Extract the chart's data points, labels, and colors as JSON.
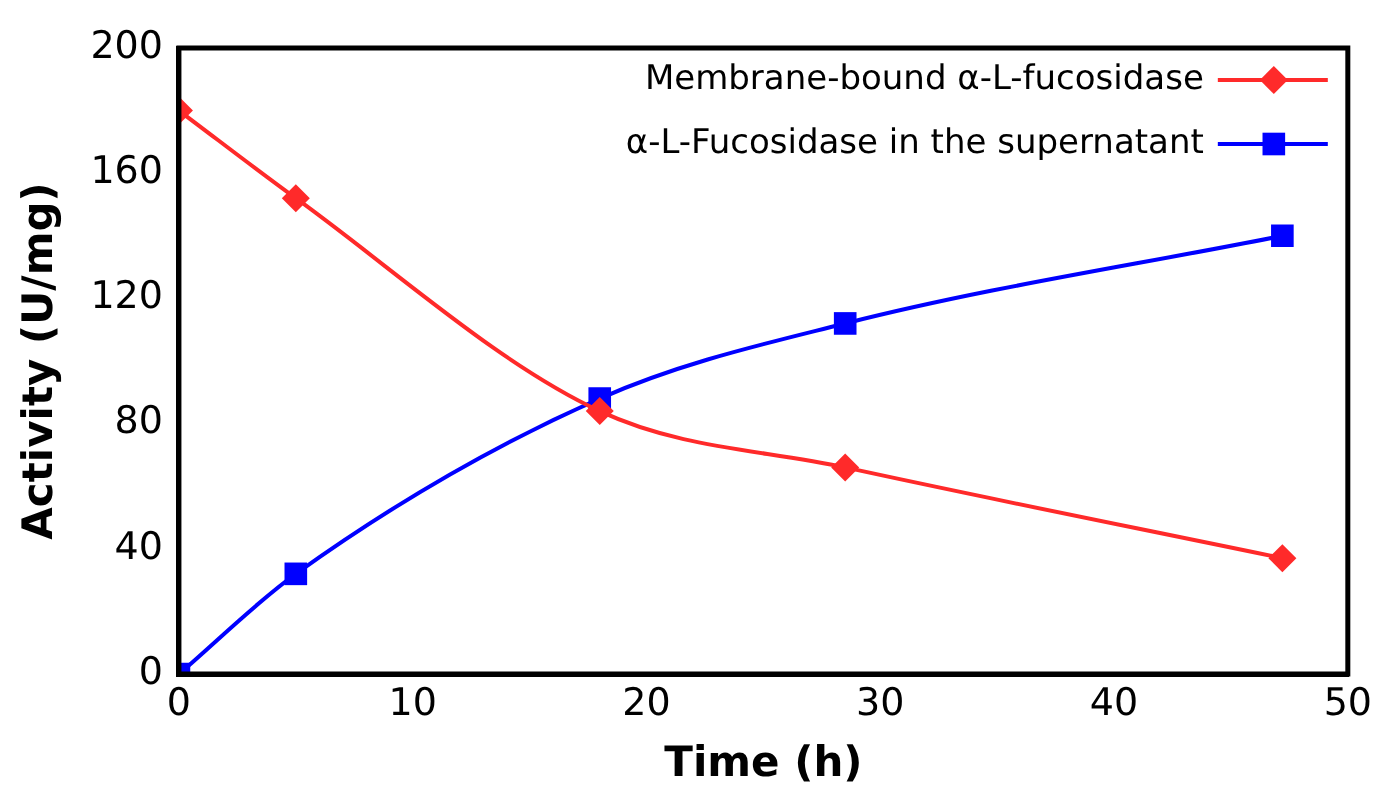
{
  "chart_data": {
    "type": "line",
    "xlabel": "Time (h)",
    "ylabel": "Activity (U/mg)",
    "x": [
      0,
      5,
      18,
      28.5,
      47.2
    ],
    "series": [
      {
        "name": "Membrane-bound α-L-fucosidase",
        "color": "#ff2a2a",
        "marker": "diamond",
        "values": [
          180,
          152,
          84,
          66,
          37
        ]
      },
      {
        "name": "α-L-Fucosidase in the supernatant",
        "color": "#0000ff",
        "marker": "square",
        "values": [
          0,
          32,
          88,
          112,
          140
        ]
      }
    ],
    "xlim": [
      0,
      50
    ],
    "xticks": [
      0,
      10,
      20,
      30,
      40,
      50
    ],
    "ylim": [
      0,
      200
    ],
    "yticks": [
      0,
      40,
      80,
      120,
      160,
      200
    ],
    "grid": false,
    "legend": "top right",
    "line_style": "solid"
  }
}
